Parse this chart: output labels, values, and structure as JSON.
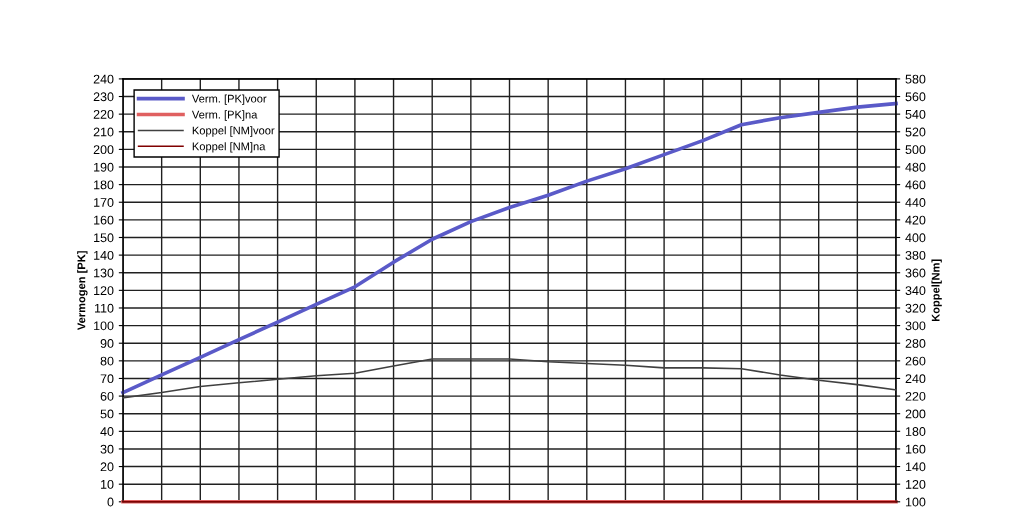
{
  "chart_data": {
    "type": "line",
    "ylabel": "Vermogen [PK]",
    "y2label": "Koppel[Nm]",
    "categories": [
      null,
      null,
      null,
      null,
      null,
      null,
      null,
      null,
      null,
      null,
      null,
      null,
      null,
      null,
      null,
      null,
      null,
      null,
      null,
      null,
      null
    ],
    "ylim": [
      0,
      240
    ],
    "yticks": [
      0,
      10,
      20,
      30,
      40,
      50,
      60,
      70,
      80,
      90,
      100,
      110,
      120,
      130,
      140,
      150,
      160,
      170,
      180,
      190,
      200,
      210,
      220,
      230,
      240
    ],
    "y2lim": [
      100,
      580
    ],
    "y2ticks": [
      100,
      120,
      140,
      160,
      180,
      200,
      220,
      240,
      260,
      280,
      300,
      320,
      340,
      360,
      380,
      400,
      420,
      440,
      460,
      480,
      500,
      520,
      540,
      560,
      580
    ],
    "grid": true,
    "legend": "top left",
    "marker": "none",
    "line_style": "solid",
    "series": [
      {
        "name": "Verm. [PK]voor",
        "color": "#5a5ac8",
        "values": [
          62,
          72,
          82,
          92,
          102,
          112,
          122,
          136,
          149,
          159,
          167,
          174,
          182,
          189,
          197,
          205,
          214,
          218,
          221,
          224,
          226
        ]
      },
      {
        "name": "Verm. [PK]na",
        "color": "#e06060",
        "values": [
          0,
          0,
          0,
          0,
          0,
          0,
          0,
          0,
          0,
          0,
          0,
          0,
          0,
          0,
          0,
          0,
          0,
          0,
          0,
          0,
          0
        ]
      },
      {
        "name": "Koppel [NM]voor",
        "color": "#404040",
        "axis": "y2",
        "values": [
          218,
          224,
          231,
          235,
          239,
          243,
          246,
          254,
          262,
          262,
          262,
          259,
          257,
          255,
          252,
          252,
          251,
          244,
          238,
          233,
          227
        ]
      },
      {
        "name": "Koppel [NM]na",
        "color": "#800000",
        "axis": "y2",
        "values": [
          100,
          100,
          100,
          100,
          100,
          100,
          100,
          100,
          100,
          100,
          100,
          100,
          100,
          100,
          100,
          100,
          100,
          100,
          100,
          100,
          100
        ]
      }
    ]
  }
}
